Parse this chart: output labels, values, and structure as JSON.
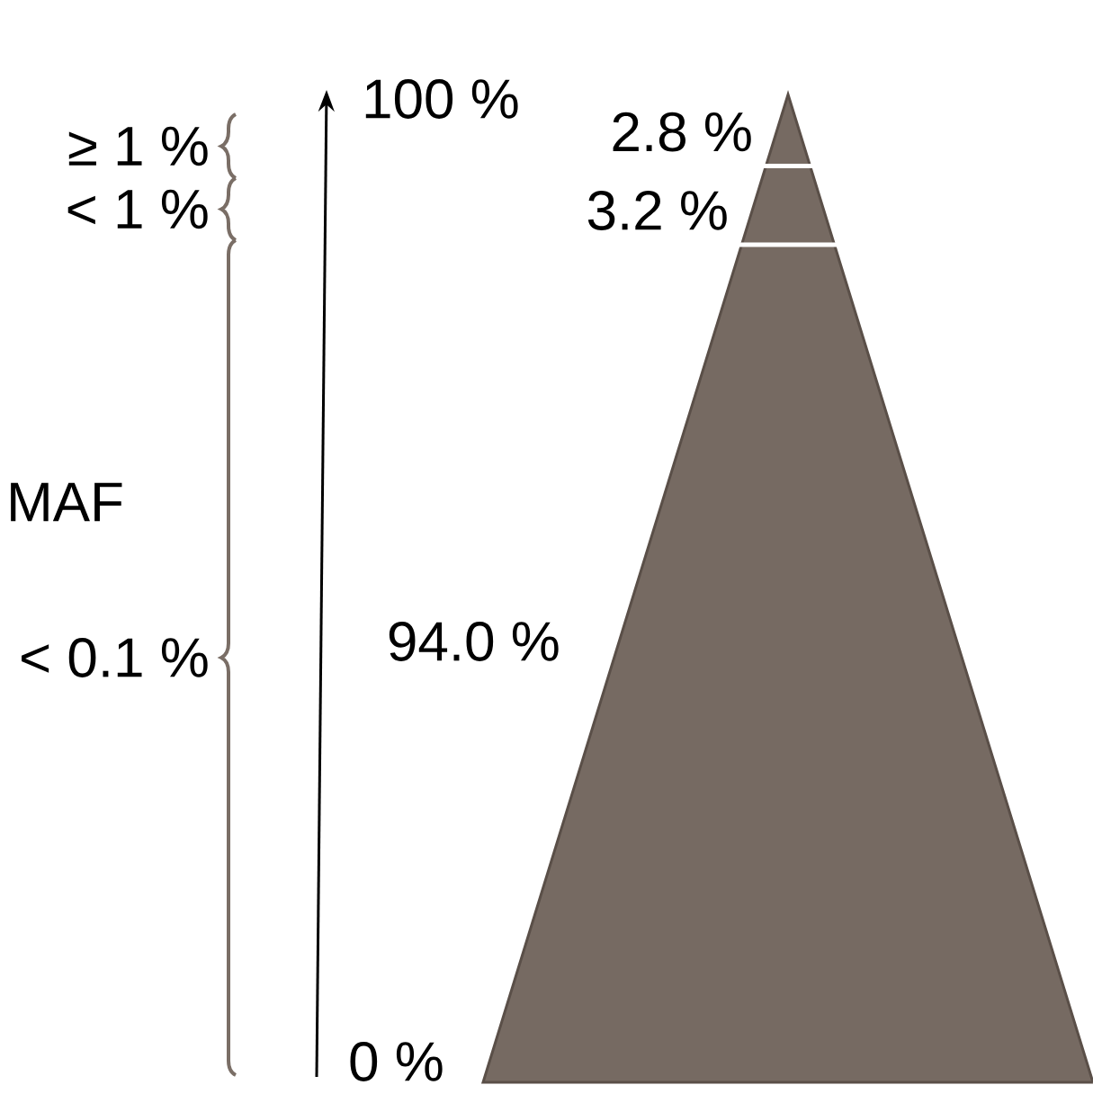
{
  "chart_data": {
    "type": "other",
    "categories": [
      "≥ 1 %",
      "< 1 %",
      "< 0.1 %"
    ],
    "values": [
      2.8,
      3.2,
      94.0
    ],
    "value_labels": [
      "2.8 %",
      "3.2 %",
      "94.0 %"
    ],
    "color": "#766a62",
    "annotations": [
      "100 %",
      "0 %",
      "MAF"
    ]
  }
}
